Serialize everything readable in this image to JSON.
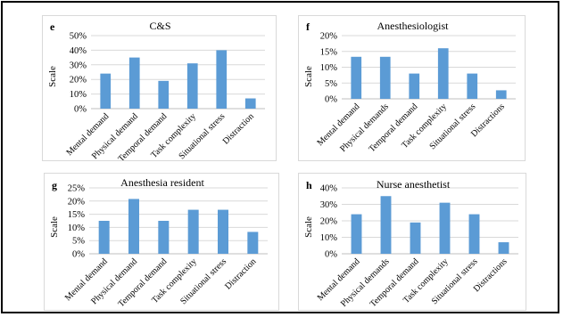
{
  "colors": {
    "bar": "#5b9bd5",
    "grid": "#d9d9d9",
    "axis": "#bfbfbf"
  },
  "chart_data": [
    {
      "panel": "e",
      "type": "bar",
      "title": "C&S",
      "xlabel": "",
      "ylabel": "Scale",
      "ylim": [
        0,
        0.5
      ],
      "yticks": [
        "0%",
        "10%",
        "20%",
        "30%",
        "40%",
        "50%"
      ],
      "categories": [
        "Mental demand",
        "Physical demand",
        "Temporal demand",
        "Task complexity",
        "Situational stress",
        "Distraction"
      ],
      "values": [
        0.24,
        0.35,
        0.19,
        0.31,
        0.4,
        0.07
      ]
    },
    {
      "panel": "f",
      "type": "bar",
      "title": "Anesthesiologist",
      "xlabel": "",
      "ylabel": "Scale",
      "ylim": [
        0,
        0.2
      ],
      "yticks": [
        "0%",
        "5%",
        "10%",
        "15%",
        "20%"
      ],
      "categories": [
        "Mental demand",
        "Physical demands",
        "Temporal demand",
        "Task complexity",
        "Situational stress",
        "Distractions"
      ],
      "values": [
        0.133,
        0.133,
        0.08,
        0.16,
        0.08,
        0.027
      ]
    },
    {
      "panel": "g",
      "type": "bar",
      "title": "Anesthesia resident",
      "xlabel": "",
      "ylabel": "Scale",
      "ylim": [
        0,
        0.25
      ],
      "yticks": [
        "0%",
        "5%",
        "10%",
        "15%",
        "20%",
        "25%"
      ],
      "categories": [
        "Mental demand",
        "Physical demand",
        "Temporal demand",
        "Task complexity",
        "Situational stress",
        "Distraction"
      ],
      "values": [
        0.125,
        0.208,
        0.125,
        0.167,
        0.167,
        0.083
      ]
    },
    {
      "panel": "h",
      "type": "bar",
      "title": "Nurse anesthetist",
      "xlabel": "",
      "ylabel": "Scale",
      "ylim": [
        0,
        0.4
      ],
      "yticks": [
        "0%",
        "10%",
        "20%",
        "30%",
        "40%"
      ],
      "categories": [
        "Mental demand",
        "Physical demands",
        "Temporal demand",
        "Task complexity",
        "Situational stress",
        "Distractions"
      ],
      "values": [
        0.24,
        0.35,
        0.19,
        0.31,
        0.24,
        0.07
      ]
    }
  ]
}
